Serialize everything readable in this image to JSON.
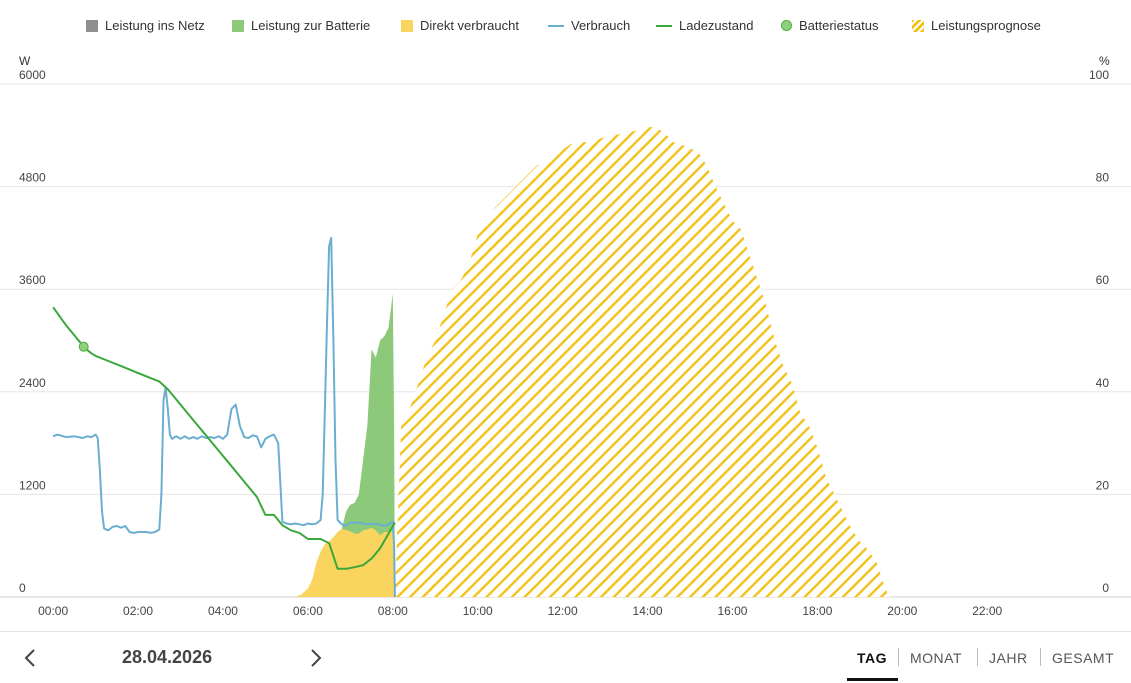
{
  "legend": [
    {
      "label": "Leistung ins Netz",
      "kind": "box",
      "color": "#8f8f8f",
      "icon": "grid-export-swatch"
    },
    {
      "label": "Leistung zur Batterie",
      "kind": "box",
      "color": "#8dc97a",
      "icon": "battery-charge-swatch"
    },
    {
      "label": "Direkt verbraucht",
      "kind": "box",
      "color": "#f9d45f",
      "icon": "direct-use-swatch"
    },
    {
      "label": "Verbrauch",
      "kind": "line",
      "color": "#6aaed0",
      "icon": "consumption-swatch"
    },
    {
      "label": "Ladezustand",
      "kind": "line",
      "color": "#3aa83a",
      "icon": "state-of-charge-swatch"
    },
    {
      "label": "Batteriestatus",
      "kind": "dot",
      "color": "#8fd07e",
      "icon": "battery-status-swatch"
    },
    {
      "label": "Leistungsprognose",
      "kind": "hatch",
      "color": "#f2c218",
      "icon": "forecast-swatch"
    }
  ],
  "chart_data": {
    "type": "area",
    "title": "",
    "x_unit": "hours",
    "x_range": [
      -0.05,
      24.35
    ],
    "x_ticks": [
      "00:00",
      "02:00",
      "04:00",
      "06:00",
      "08:00",
      "10:00",
      "12:00",
      "14:00",
      "16:00",
      "18:00",
      "20:00",
      "22:00"
    ],
    "y_left_label": "W",
    "y_left_range": [
      0,
      6000
    ],
    "y_left_ticks": [
      "0",
      "1200",
      "2400",
      "3600",
      "4800",
      "6000"
    ],
    "y_right_label": "%",
    "y_right_range": [
      0,
      100
    ],
    "y_right_ticks": [
      "0",
      "20",
      "40",
      "60",
      "80",
      "100"
    ],
    "grid": true,
    "series": [
      {
        "name": "Direkt verbraucht",
        "type": "area",
        "axis": "left",
        "color": "#f9d45f",
        "x": [
          5.7,
          5.85,
          6.0,
          6.1,
          6.2,
          6.3,
          6.4,
          6.5,
          6.6,
          6.7,
          6.8,
          6.9,
          7.0,
          7.1,
          7.2,
          7.3,
          7.4,
          7.5,
          7.6,
          7.7,
          7.8,
          7.9,
          8.0,
          8.03,
          8.05
        ],
        "y": [
          0,
          30,
          100,
          200,
          400,
          530,
          620,
          650,
          700,
          760,
          800,
          780,
          770,
          740,
          740,
          780,
          790,
          810,
          780,
          720,
          760,
          760,
          800,
          500,
          0
        ]
      },
      {
        "name": "Leistung zur Batterie",
        "type": "area",
        "axis": "left",
        "color": "#8dc97a",
        "x": [
          6.8,
          6.9,
          7.0,
          7.1,
          7.2,
          7.3,
          7.4,
          7.5,
          7.6,
          7.7,
          7.8,
          7.9,
          8.0,
          8.03,
          8.05
        ],
        "y": [
          800,
          1000,
          1080,
          1100,
          1200,
          1600,
          2000,
          2900,
          2800,
          3000,
          3050,
          3150,
          3550,
          2000,
          0
        ]
      },
      {
        "name": "Verbrauch",
        "type": "line",
        "axis": "left",
        "color": "#6aaed0",
        "x": [
          0,
          0.1,
          0.3,
          0.5,
          0.7,
          0.8,
          0.9,
          1.0,
          1.05,
          1.1,
          1.15,
          1.2,
          1.3,
          1.4,
          1.5,
          1.6,
          1.7,
          1.8,
          1.9,
          2.0,
          2.1,
          2.2,
          2.3,
          2.4,
          2.5,
          2.55,
          2.6,
          2.65,
          2.7,
          2.75,
          2.8,
          2.9,
          3.0,
          3.1,
          3.2,
          3.3,
          3.4,
          3.5,
          3.6,
          3.7,
          3.8,
          3.9,
          4.0,
          4.1,
          4.2,
          4.3,
          4.4,
          4.5,
          4.6,
          4.7,
          4.8,
          4.9,
          5.0,
          5.1,
          5.2,
          5.3,
          5.4,
          5.5,
          5.6,
          5.7,
          5.8,
          5.9,
          6.0,
          6.1,
          6.2,
          6.3,
          6.35,
          6.4,
          6.45,
          6.5,
          6.55,
          6.6,
          6.65,
          6.7,
          6.8,
          6.9,
          7.0,
          7.2,
          7.4,
          7.6,
          7.8,
          8.0,
          8.03,
          8.05
        ],
        "y": [
          1880,
          1900,
          1870,
          1880,
          1860,
          1880,
          1870,
          1900,
          1860,
          1500,
          1000,
          800,
          780,
          820,
          830,
          810,
          830,
          760,
          750,
          760,
          760,
          760,
          750,
          760,
          790,
          1200,
          2300,
          2450,
          2200,
          1900,
          1850,
          1880,
          1850,
          1880,
          1850,
          1870,
          1850,
          1880,
          1860,
          1870,
          1860,
          1880,
          1850,
          1900,
          2200,
          2250,
          2000,
          1870,
          1860,
          1890,
          1880,
          1750,
          1850,
          1880,
          1900,
          1800,
          880,
          860,
          850,
          860,
          850,
          840,
          860,
          850,
          860,
          900,
          1200,
          2200,
          3200,
          4100,
          4200,
          3000,
          1600,
          900,
          850,
          830,
          870,
          870,
          850,
          860,
          830,
          880,
          600,
          0
        ]
      },
      {
        "name": "Ladezustand",
        "type": "line",
        "axis": "right",
        "color": "#3aa83a",
        "x": [
          0,
          0.3,
          0.5,
          0.75,
          0.9,
          1.0,
          1.3,
          1.6,
          1.9,
          2.2,
          2.5,
          2.7,
          3.0,
          3.3,
          3.6,
          3.9,
          4.2,
          4.5,
          4.8,
          5.0,
          5.2,
          5.4,
          5.6,
          5.8,
          6.0,
          6.3,
          6.5,
          6.6,
          6.7,
          6.9,
          7.1,
          7.3,
          7.5,
          7.7,
          8.05
        ],
        "y": [
          56.5,
          53,
          51,
          48.5,
          47.5,
          47,
          46,
          45,
          44,
          43,
          42,
          40.5,
          37.5,
          34.5,
          31.5,
          28.5,
          25.5,
          22.5,
          19.5,
          16,
          16,
          14,
          13,
          12.5,
          11.3,
          11.3,
          10.5,
          8,
          5.5,
          5.5,
          5.8,
          6.2,
          7.5,
          9.5,
          14.5
        ]
      },
      {
        "name": "Batteriestatus",
        "type": "point",
        "axis": "right",
        "color": "#8fd07e",
        "x": [
          0.72
        ],
        "y": [
          48.8
        ]
      },
      {
        "name": "Leistungsprognose",
        "type": "hatched-area",
        "axis": "left",
        "color": "#f2c218",
        "x": [
          8.05,
          8.2,
          8.4,
          8.6,
          8.8,
          9.0,
          9.2,
          9.4,
          9.6,
          9.8,
          10.0,
          10.2,
          10.4,
          10.6,
          10.8,
          11.0,
          11.2,
          11.4,
          11.6,
          11.8,
          12.0,
          12.2,
          12.4,
          12.6,
          12.8,
          13.0,
          13.2,
          13.4,
          13.6,
          13.8,
          14.0,
          14.2,
          14.4,
          14.6,
          14.8,
          15.0,
          15.2,
          15.4,
          15.6,
          15.8,
          16.0,
          16.2,
          16.4,
          16.6,
          16.8,
          17.0,
          17.2,
          17.4,
          17.6,
          17.8,
          18.0,
          18.2,
          18.4,
          18.6,
          18.8,
          19.0,
          19.2,
          19.4,
          19.6,
          19.7
        ],
        "y": [
          0,
          2050,
          2200,
          2500,
          2800,
          3000,
          3300,
          3600,
          3700,
          3900,
          4250,
          4350,
          4550,
          4650,
          4750,
          4850,
          4950,
          5050,
          5100,
          5150,
          5230,
          5300,
          5320,
          5320,
          5350,
          5380,
          5400,
          5420,
          5440,
          5460,
          5500,
          5490,
          5430,
          5320,
          5290,
          5250,
          5200,
          5040,
          4800,
          4600,
          4400,
          4300,
          4000,
          3700,
          3400,
          3000,
          2700,
          2500,
          2150,
          2000,
          1750,
          1400,
          1200,
          1000,
          800,
          650,
          550,
          400,
          100,
          0
        ]
      }
    ]
  },
  "footer": {
    "date": "28.04.2026",
    "tabs": [
      {
        "label": "TAG",
        "active": true
      },
      {
        "label": "MONAT",
        "active": false
      },
      {
        "label": "JAHR",
        "active": false
      },
      {
        "label": "GESAMT",
        "active": false
      }
    ]
  }
}
